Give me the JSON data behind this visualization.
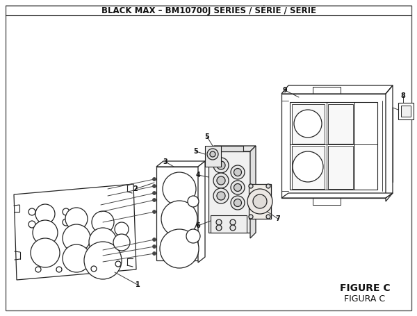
{
  "title": "BLACK MAX – BM10700J SERIES / SÉRIE / SERIE",
  "title_fontsize": 8.5,
  "title_fontweight": "bold",
  "background_color": "#ffffff",
  "border_color": "#333333",
  "figure_label": "FIGURE C",
  "figure_label2": "FIGURA C",
  "figure_label_fontsize": 10,
  "figure_label_fontweight": "bold",
  "line_color": "#222222",
  "lw": 0.9
}
